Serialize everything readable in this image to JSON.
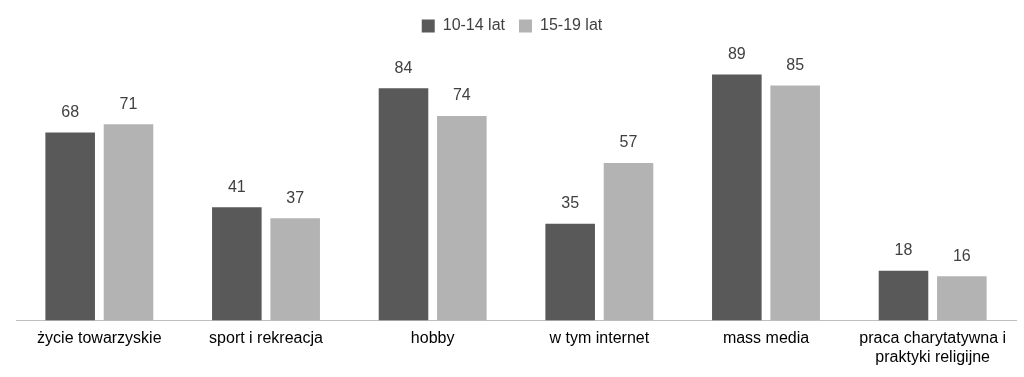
{
  "chart_data": {
    "type": "bar",
    "categories": [
      "życie towarzyskie",
      "sport i rekreacja",
      "hobby",
      "w tym internet",
      "mass media",
      "praca charytatywna i praktyki religijne"
    ],
    "series": [
      {
        "name": "10-14 lat",
        "color": "#595959",
        "values": [
          68,
          41,
          84,
          35,
          89,
          18
        ]
      },
      {
        "name": "15-19 lat",
        "color": "#b3b3b3",
        "values": [
          71,
          37,
          74,
          57,
          85,
          16
        ]
      }
    ],
    "data_labels": true,
    "legend": "top",
    "grid": false
  }
}
